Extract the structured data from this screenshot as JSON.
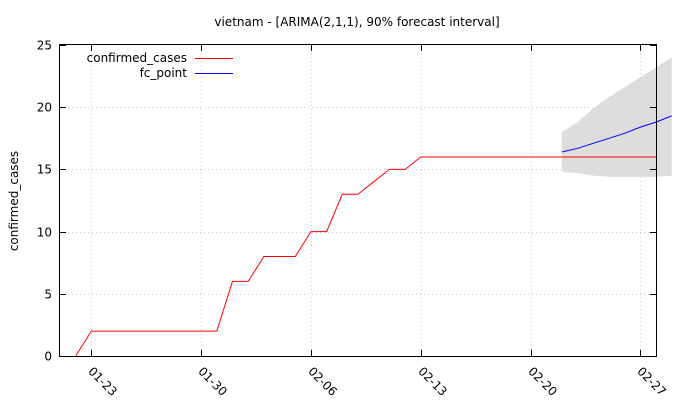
{
  "chart_data": {
    "type": "line",
    "title": "vietnam -  [ARIMA(2,1,1), 90% forecast interval]",
    "ylabel": "confirmed_cases",
    "xlabel": "",
    "ylim": [
      0,
      25
    ],
    "y_ticks": [
      0,
      5,
      10,
      15,
      20,
      25
    ],
    "x_range": [
      "2020-01-21",
      "2020-02-28"
    ],
    "x_ticks": [
      "01-23",
      "01-30",
      "02-06",
      "02-13",
      "02-20",
      "02-27"
    ],
    "x_tick_dates": [
      "2020-01-23",
      "2020-01-30",
      "2020-02-06",
      "2020-02-13",
      "2020-02-20",
      "2020-02-27"
    ],
    "grid": true,
    "legend_position": "top-left",
    "series": [
      {
        "name": "confirmed_cases",
        "color": "#ff0000",
        "points": [
          [
            "2020-01-22",
            0
          ],
          [
            "2020-01-23",
            2
          ],
          [
            "2020-01-24",
            2
          ],
          [
            "2020-01-25",
            2
          ],
          [
            "2020-01-26",
            2
          ],
          [
            "2020-01-27",
            2
          ],
          [
            "2020-01-28",
            2
          ],
          [
            "2020-01-29",
            2
          ],
          [
            "2020-01-30",
            2
          ],
          [
            "2020-01-31",
            2
          ],
          [
            "2020-02-01",
            6
          ],
          [
            "2020-02-02",
            6
          ],
          [
            "2020-02-03",
            8
          ],
          [
            "2020-02-04",
            8
          ],
          [
            "2020-02-05",
            8
          ],
          [
            "2020-02-06",
            10
          ],
          [
            "2020-02-07",
            10
          ],
          [
            "2020-02-08",
            13
          ],
          [
            "2020-02-09",
            13
          ],
          [
            "2020-02-10",
            14
          ],
          [
            "2020-02-11",
            15
          ],
          [
            "2020-02-12",
            15
          ],
          [
            "2020-02-13",
            16
          ],
          [
            "2020-02-14",
            16
          ],
          [
            "2020-02-15",
            16
          ],
          [
            "2020-02-16",
            16
          ],
          [
            "2020-02-17",
            16
          ],
          [
            "2020-02-18",
            16
          ],
          [
            "2020-02-19",
            16
          ],
          [
            "2020-02-20",
            16
          ],
          [
            "2020-02-21",
            16
          ],
          [
            "2020-02-22",
            16
          ],
          [
            "2020-02-23",
            16
          ],
          [
            "2020-02-24",
            16
          ],
          [
            "2020-02-25",
            16
          ],
          [
            "2020-02-26",
            16
          ],
          [
            "2020-02-27",
            16
          ],
          [
            "2020-02-28",
            16
          ]
        ]
      },
      {
        "name": "fc_point",
        "color": "#0000ff",
        "points": [
          [
            "2020-02-22",
            16.4
          ],
          [
            "2020-02-23",
            16.7
          ],
          [
            "2020-02-24",
            17.1
          ],
          [
            "2020-02-25",
            17.5
          ],
          [
            "2020-02-26",
            17.9
          ],
          [
            "2020-02-27",
            18.4
          ],
          [
            "2020-02-28",
            18.8
          ],
          [
            "2020-02-29",
            19.3
          ]
        ]
      }
    ],
    "forecast_interval": {
      "color": "#dddddd",
      "points": [
        [
          "2020-02-22",
          14.8,
          18.0
        ],
        [
          "2020-02-23",
          14.7,
          18.8
        ],
        [
          "2020-02-24",
          14.5,
          19.9
        ],
        [
          "2020-02-25",
          14.4,
          20.8
        ],
        [
          "2020-02-26",
          14.4,
          21.6
        ],
        [
          "2020-02-27",
          14.4,
          22.4
        ],
        [
          "2020-02-28",
          14.4,
          23.2
        ],
        [
          "2020-02-29",
          14.5,
          24.0
        ]
      ]
    }
  }
}
